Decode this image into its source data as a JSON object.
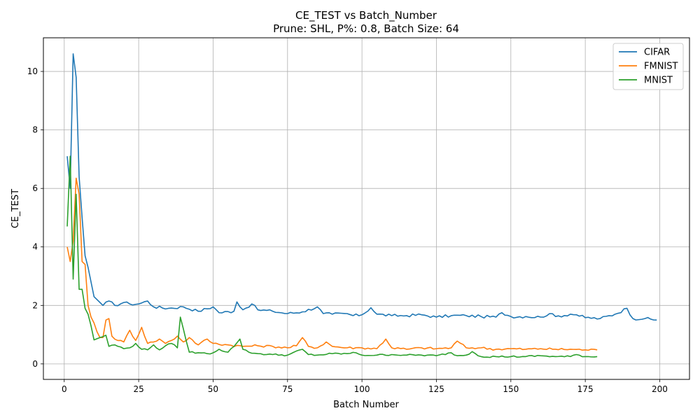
{
  "chart_data": {
    "type": "line",
    "title": "CE_TEST vs Batch_Number",
    "subtitle": "Prune: SHL, P%: 0.8, Batch Size: 64",
    "xlabel": "Batch Number",
    "ylabel": "CE_TEST",
    "xlim": [
      -7,
      210
    ],
    "ylim": [
      -0.53,
      11.15
    ],
    "xticks": [
      0,
      25,
      50,
      75,
      100,
      125,
      150,
      175,
      200
    ],
    "yticks": [
      0,
      2,
      4,
      6,
      8,
      10
    ],
    "grid": true,
    "legend_position": "top-right",
    "series": [
      {
        "name": "CIFAR",
        "color": "#1f77b4",
        "anchors": [
          [
            1,
            7.1
          ],
          [
            2,
            6.0
          ],
          [
            3,
            10.6
          ],
          [
            4,
            9.8
          ],
          [
            5,
            6.4
          ],
          [
            6,
            5.0
          ],
          [
            7,
            3.7
          ],
          [
            8,
            3.3
          ],
          [
            9,
            2.8
          ],
          [
            10,
            2.3
          ],
          [
            12,
            2.1
          ],
          [
            13,
            2.0
          ],
          [
            15,
            2.15
          ],
          [
            17,
            2.0
          ],
          [
            20,
            2.1
          ],
          [
            22,
            2.05
          ],
          [
            25,
            2.05
          ],
          [
            28,
            2.15
          ],
          [
            30,
            1.95
          ],
          [
            35,
            1.9
          ],
          [
            40,
            1.95
          ],
          [
            45,
            1.8
          ],
          [
            50,
            1.95
          ],
          [
            52,
            1.75
          ],
          [
            57,
            1.8
          ],
          [
            58,
            2.12
          ],
          [
            60,
            1.85
          ],
          [
            63,
            2.05
          ],
          [
            65,
            1.85
          ],
          [
            70,
            1.8
          ],
          [
            75,
            1.72
          ],
          [
            80,
            1.78
          ],
          [
            85,
            1.95
          ],
          [
            87,
            1.72
          ],
          [
            90,
            1.7
          ],
          [
            95,
            1.72
          ],
          [
            97,
            1.65
          ],
          [
            100,
            1.68
          ],
          [
            103,
            1.92
          ],
          [
            105,
            1.7
          ],
          [
            110,
            1.65
          ],
          [
            115,
            1.65
          ],
          [
            120,
            1.68
          ],
          [
            125,
            1.6
          ],
          [
            130,
            1.65
          ],
          [
            135,
            1.65
          ],
          [
            140,
            1.62
          ],
          [
            145,
            1.6
          ],
          [
            147,
            1.75
          ],
          [
            150,
            1.62
          ],
          [
            155,
            1.62
          ],
          [
            160,
            1.6
          ],
          [
            163,
            1.72
          ],
          [
            165,
            1.62
          ],
          [
            170,
            1.7
          ],
          [
            172,
            1.68
          ],
          [
            175,
            1.58
          ],
          [
            180,
            1.55
          ],
          [
            185,
            1.7
          ],
          [
            189,
            1.9
          ],
          [
            191,
            1.55
          ],
          [
            195,
            1.55
          ],
          [
            199,
            1.5
          ]
        ],
        "noise": 0.05
      },
      {
        "name": "FMNIST",
        "color": "#ff7f0e",
        "anchors": [
          [
            1,
            4.0
          ],
          [
            2,
            3.5
          ],
          [
            3,
            4.2
          ],
          [
            4,
            6.35
          ],
          [
            5,
            5.8
          ],
          [
            6,
            3.5
          ],
          [
            7,
            3.4
          ],
          [
            8,
            2.0
          ],
          [
            9,
            1.6
          ],
          [
            10,
            1.4
          ],
          [
            11,
            1.1
          ],
          [
            12,
            0.9
          ],
          [
            13,
            0.9
          ],
          [
            14,
            1.5
          ],
          [
            15,
            1.55
          ],
          [
            16,
            0.95
          ],
          [
            18,
            0.8
          ],
          [
            20,
            0.75
          ],
          [
            22,
            1.15
          ],
          [
            24,
            0.8
          ],
          [
            26,
            1.25
          ],
          [
            28,
            0.7
          ],
          [
            30,
            0.75
          ],
          [
            32,
            0.85
          ],
          [
            34,
            0.7
          ],
          [
            36,
            0.8
          ],
          [
            38,
            0.95
          ],
          [
            40,
            0.75
          ],
          [
            42,
            0.9
          ],
          [
            45,
            0.65
          ],
          [
            48,
            0.85
          ],
          [
            50,
            0.7
          ],
          [
            55,
            0.65
          ],
          [
            60,
            0.6
          ],
          [
            65,
            0.62
          ],
          [
            70,
            0.6
          ],
          [
            75,
            0.55
          ],
          [
            78,
            0.62
          ],
          [
            80,
            0.9
          ],
          [
            82,
            0.6
          ],
          [
            85,
            0.55
          ],
          [
            88,
            0.75
          ],
          [
            90,
            0.6
          ],
          [
            95,
            0.55
          ],
          [
            100,
            0.55
          ],
          [
            105,
            0.52
          ],
          [
            108,
            0.85
          ],
          [
            110,
            0.55
          ],
          [
            115,
            0.5
          ],
          [
            120,
            0.55
          ],
          [
            125,
            0.52
          ],
          [
            130,
            0.55
          ],
          [
            132,
            0.78
          ],
          [
            135,
            0.55
          ],
          [
            140,
            0.55
          ],
          [
            145,
            0.5
          ],
          [
            150,
            0.52
          ],
          [
            155,
            0.5
          ],
          [
            160,
            0.52
          ],
          [
            165,
            0.5
          ],
          [
            170,
            0.5
          ],
          [
            175,
            0.48
          ],
          [
            179,
            0.48
          ]
        ],
        "noise": 0.04
      },
      {
        "name": "MNIST",
        "color": "#2ca02c",
        "anchors": [
          [
            1,
            4.7
          ],
          [
            2,
            7.1
          ],
          [
            3,
            2.9
          ],
          [
            4,
            5.8
          ],
          [
            5,
            2.55
          ],
          [
            6,
            2.55
          ],
          [
            7,
            1.9
          ],
          [
            8,
            1.7
          ],
          [
            9,
            1.3
          ],
          [
            10,
            0.82
          ],
          [
            12,
            0.9
          ],
          [
            14,
            0.98
          ],
          [
            15,
            0.6
          ],
          [
            17,
            0.65
          ],
          [
            20,
            0.52
          ],
          [
            22,
            0.55
          ],
          [
            24,
            0.7
          ],
          [
            26,
            0.5
          ],
          [
            28,
            0.48
          ],
          [
            30,
            0.65
          ],
          [
            32,
            0.48
          ],
          [
            34,
            0.62
          ],
          [
            36,
            0.7
          ],
          [
            38,
            0.55
          ],
          [
            39,
            1.6
          ],
          [
            40,
            1.2
          ],
          [
            42,
            0.4
          ],
          [
            45,
            0.38
          ],
          [
            48,
            0.35
          ],
          [
            50,
            0.38
          ],
          [
            52,
            0.5
          ],
          [
            55,
            0.4
          ],
          [
            58,
            0.72
          ],
          [
            59,
            0.85
          ],
          [
            60,
            0.5
          ],
          [
            62,
            0.4
          ],
          [
            65,
            0.35
          ],
          [
            70,
            0.32
          ],
          [
            75,
            0.3
          ],
          [
            80,
            0.5
          ],
          [
            82,
            0.32
          ],
          [
            85,
            0.3
          ],
          [
            90,
            0.35
          ],
          [
            95,
            0.35
          ],
          [
            98,
            0.38
          ],
          [
            100,
            0.3
          ],
          [
            105,
            0.3
          ],
          [
            110,
            0.32
          ],
          [
            115,
            0.3
          ],
          [
            120,
            0.3
          ],
          [
            125,
            0.28
          ],
          [
            130,
            0.38
          ],
          [
            132,
            0.28
          ],
          [
            135,
            0.3
          ],
          [
            137,
            0.42
          ],
          [
            140,
            0.25
          ],
          [
            145,
            0.25
          ],
          [
            150,
            0.25
          ],
          [
            155,
            0.25
          ],
          [
            160,
            0.28
          ],
          [
            165,
            0.25
          ],
          [
            170,
            0.25
          ],
          [
            172,
            0.32
          ],
          [
            175,
            0.25
          ],
          [
            179,
            0.25
          ]
        ],
        "noise": 0.03
      }
    ]
  }
}
